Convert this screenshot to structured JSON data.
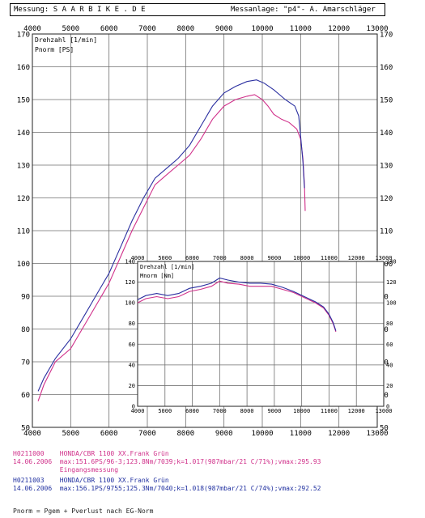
{
  "header": {
    "left": "Messung: S A A R B I K E . D E",
    "right": "Messanlage: \"p4\"- A. Amarschläger"
  },
  "colors": {
    "run1": "#d0308a",
    "run2": "#2a2fa0",
    "grid": "#6f6f6f"
  },
  "chart_data": [
    {
      "type": "line",
      "title": "",
      "xlabel": "",
      "ylabel": "",
      "legend_labels": [
        "Drehzahl [1/min]",
        "Pnorm [PS]"
      ],
      "xlim": [
        4000,
        13000
      ],
      "ylim": [
        50,
        170
      ],
      "x_ticks": [
        4000,
        5000,
        6000,
        7000,
        8000,
        9000,
        10000,
        11000,
        12000,
        13000
      ],
      "y_ticks_left": [
        50,
        60,
        70,
        80,
        90,
        100,
        110,
        120,
        130,
        140,
        150,
        160,
        170
      ],
      "y_ticks_right": [
        50,
        60,
        70,
        80,
        90,
        100,
        110,
        120,
        130,
        140,
        150,
        160,
        170
      ],
      "series": [
        {
          "colorKey": "run1",
          "points": [
            [
              4150,
              58
            ],
            [
              4300,
              63
            ],
            [
              4600,
              70
            ],
            [
              5000,
              74
            ],
            [
              5400,
              82
            ],
            [
              5700,
              88
            ],
            [
              6000,
              94
            ],
            [
              6300,
              102
            ],
            [
              6600,
              110
            ],
            [
              6900,
              117
            ],
            [
              7200,
              124
            ],
            [
              7500,
              127
            ],
            [
              7800,
              130
            ],
            [
              8100,
              133
            ],
            [
              8400,
              138
            ],
            [
              8700,
              144
            ],
            [
              9000,
              148
            ],
            [
              9300,
              150
            ],
            [
              9600,
              151
            ],
            [
              9800,
              151.5
            ],
            [
              10000,
              150
            ],
            [
              10150,
              148
            ],
            [
              10300,
              145.5
            ],
            [
              10500,
              144
            ],
            [
              10700,
              143
            ],
            [
              10900,
              141
            ],
            [
              11000,
              138
            ],
            [
              11060,
              132
            ],
            [
              11100,
              124
            ],
            [
              11120,
              116
            ]
          ]
        },
        {
          "colorKey": "run2",
          "points": [
            [
              4150,
              61
            ],
            [
              4300,
              65
            ],
            [
              4600,
              71
            ],
            [
              5000,
              77
            ],
            [
              5400,
              85
            ],
            [
              5700,
              91
            ],
            [
              6000,
              97
            ],
            [
              6300,
              105
            ],
            [
              6600,
              113
            ],
            [
              6900,
              120
            ],
            [
              7200,
              126
            ],
            [
              7500,
              129
            ],
            [
              7800,
              132
            ],
            [
              8100,
              136
            ],
            [
              8400,
              142
            ],
            [
              8700,
              148
            ],
            [
              9000,
              152
            ],
            [
              9300,
              154
            ],
            [
              9600,
              155.5
            ],
            [
              9850,
              156
            ],
            [
              10050,
              155
            ],
            [
              10300,
              153
            ],
            [
              10600,
              150
            ],
            [
              10850,
              148
            ],
            [
              10950,
              145
            ],
            [
              11000,
              139
            ],
            [
              11060,
              131
            ],
            [
              11100,
              123
            ]
          ]
        }
      ]
    },
    {
      "type": "line",
      "title": "",
      "xlabel": "",
      "ylabel": "",
      "legend_labels": [
        "Drehzahl [1/min]",
        "Mnorm [Nm]"
      ],
      "xlim": [
        4000,
        13000
      ],
      "ylim": [
        0,
        140
      ],
      "x_ticks": [
        4000,
        5000,
        6000,
        7000,
        8000,
        9000,
        10000,
        11000,
        12000,
        13000
      ],
      "y_ticks": [
        0,
        20,
        40,
        60,
        80,
        100,
        120,
        140
      ],
      "series": [
        {
          "colorKey": "run1",
          "points": [
            [
              4000,
              100
            ],
            [
              4300,
              104
            ],
            [
              4700,
              106
            ],
            [
              5100,
              104
            ],
            [
              5500,
              106
            ],
            [
              5900,
              111
            ],
            [
              6300,
              113
            ],
            [
              6700,
              116
            ],
            [
              7000,
              121
            ],
            [
              7300,
              119
            ],
            [
              7700,
              118
            ],
            [
              8100,
              116
            ],
            [
              8500,
              116
            ],
            [
              8900,
              116
            ],
            [
              9300,
              113
            ],
            [
              9700,
              110
            ],
            [
              10100,
              105
            ],
            [
              10500,
              100
            ],
            [
              10800,
              95
            ],
            [
              11000,
              88
            ],
            [
              11150,
              80
            ],
            [
              11250,
              72
            ]
          ]
        },
        {
          "colorKey": "run2",
          "points": [
            [
              4000,
              103
            ],
            [
              4300,
              107
            ],
            [
              4700,
              109
            ],
            [
              5100,
              107
            ],
            [
              5500,
              109
            ],
            [
              5900,
              114
            ],
            [
              6300,
              116
            ],
            [
              6700,
              119
            ],
            [
              7000,
              124
            ],
            [
              7300,
              122
            ],
            [
              7700,
              120
            ],
            [
              8100,
              119
            ],
            [
              8500,
              119
            ],
            [
              8900,
              118
            ],
            [
              9300,
              115
            ],
            [
              9700,
              111
            ],
            [
              10100,
              106
            ],
            [
              10500,
              101
            ],
            [
              10800,
              96
            ],
            [
              11000,
              89
            ],
            [
              11150,
              81
            ],
            [
              11250,
              73
            ]
          ]
        }
      ]
    }
  ],
  "footer": {
    "line1": "H0211000    HONDA/CBR 1100 XX.Frank Grün",
    "line2": "14.06.2006  max:151.6PS/96-3;123.8Nm/7039;k=1.017(987mbar/21 C/71%);vmax:295.93",
    "line3": "            Eingangsmessung",
    "line4": "H0211003    HONDA/CBR 1100 XX.Frank Grün",
    "line5": "14.06.2006  max:156.1PS/9755;125.3Nm/7040;k=1.018(987mbar/21 C/74%);vmax:292.52",
    "line6": "Pnorm = Pgem + Pverlust nach EG-Norm"
  }
}
